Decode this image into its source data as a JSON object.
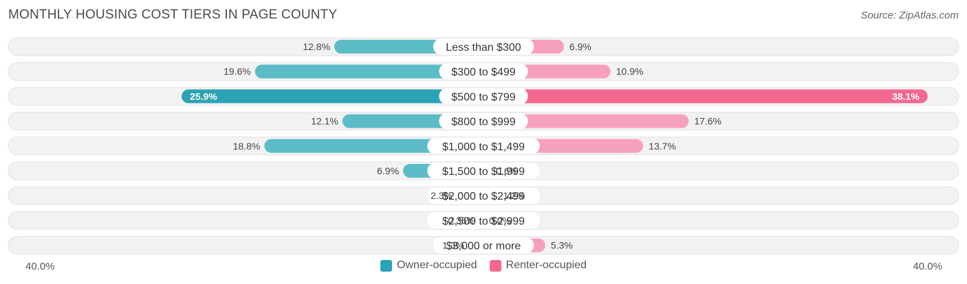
{
  "title": "MONTHLY HOUSING COST TIERS IN PAGE COUNTY",
  "source": "Source: ZipAtlas.com",
  "colors": {
    "owner": "#5bbcc8",
    "owner_highlight": "#2ba3b5",
    "renter": "#f7a0bd",
    "renter_highlight": "#f2688f",
    "row_bg": "#f2f2f2"
  },
  "legend": {
    "owner_label": "Owner-occupied",
    "renter_label": "Renter-occupied"
  },
  "chart_data": {
    "type": "bar",
    "orientation": "horizontal-diverging",
    "categories": [
      "Less than $300",
      "$300 to $499",
      "$500 to $799",
      "$800 to $999",
      "$1,000 to $1,499",
      "$1,500 to $1,999",
      "$2,000 to $2,499",
      "$2,500 to $2,999",
      "$3,000 or more"
    ],
    "series": [
      {
        "name": "Owner-occupied",
        "values": [
          12.8,
          19.6,
          25.9,
          12.1,
          18.8,
          6.9,
          2.3,
          0.35,
          1.3
        ],
        "labels": [
          "12.8%",
          "19.6%",
          "25.9%",
          "12.1%",
          "18.8%",
          "6.9%",
          "2.3%",
          "0.35%",
          "1.3%"
        ]
      },
      {
        "name": "Renter-occupied",
        "values": [
          6.9,
          10.9,
          38.1,
          17.6,
          13.7,
          0.6,
          1.2,
          0.0,
          5.3
        ],
        "labels": [
          "6.9%",
          "10.9%",
          "38.1%",
          "17.6%",
          "13.7%",
          "0.6%",
          "1.2%",
          "0.0%",
          "5.3%"
        ]
      }
    ],
    "highlight_index": 2,
    "axis_min_label": "40.0%",
    "axis_max_label": "40.0%",
    "xlim": [
      -40,
      40
    ],
    "legend_position": "bottom-center"
  }
}
